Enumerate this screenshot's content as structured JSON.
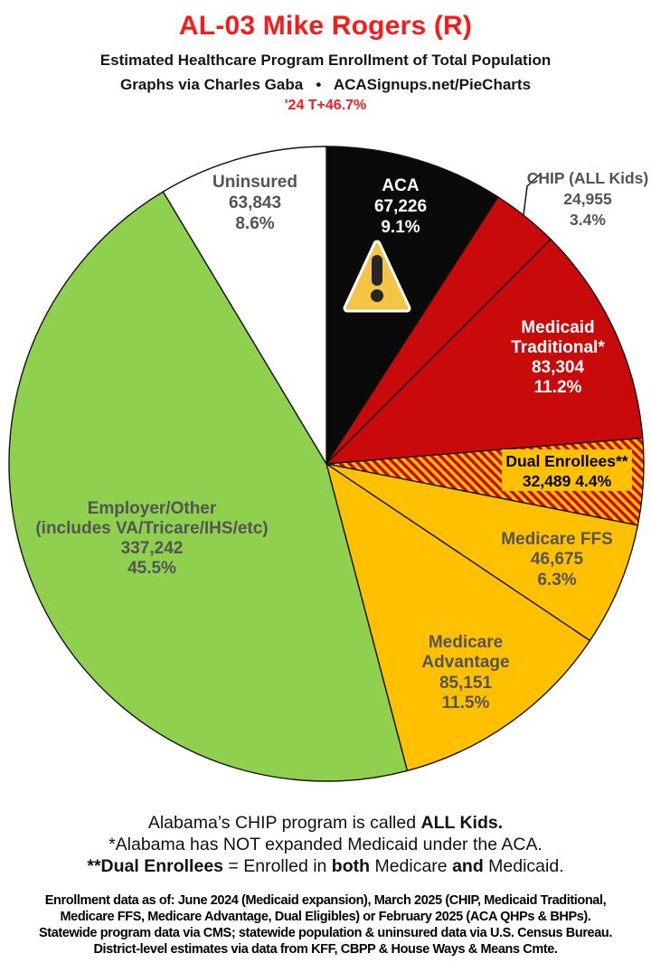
{
  "header": {
    "title": "AL-03 Mike Rogers (R)",
    "subtitle": "Estimated Healthcare Program Enrollment of Total Population",
    "credit": "Graphs via Charles Gaba   •   ACASignups.net/PieCharts",
    "trend": "'24 T+46.7%",
    "title_color": "#fa1a1a"
  },
  "chart_data": {
    "type": "pie",
    "title": "AL-03 Mike Rogers (R) — Estimated Healthcare Program Enrollment of Total Population",
    "start_angle": "12 o'clock, clockwise",
    "colors": {
      "black": "#0a0a0a",
      "red": "#c80a0a",
      "gold": "#ffc000",
      "green": "#8fd14f",
      "white": "#ffffff",
      "label_gray": "#545454"
    },
    "segments": [
      {
        "id": "aca",
        "label": "ACA",
        "value": 67226,
        "value_str": "67,226",
        "pct": 9.1,
        "pct_str": "9.1%",
        "color": "#0a0a0a",
        "text_color": "#ffffff",
        "display_lines": [
          "ACA",
          "67,226",
          "9.1%"
        ],
        "icon": "warning-triangle"
      },
      {
        "id": "chip",
        "label": "CHIP (ALL Kids)",
        "value": 24955,
        "value_str": "24,955",
        "pct": 3.4,
        "pct_str": "3.4%",
        "color": "#c80a0a",
        "text_color": "#545454",
        "display_lines": [
          "CHIP (ALL Kids)",
          "24,955",
          "3.4%"
        ],
        "label_placement": "outside-with-leader-line"
      },
      {
        "id": "medicaid",
        "label": "Medicaid Traditional*",
        "value": 83304,
        "value_str": "83,304",
        "pct": 11.2,
        "pct_str": "11.2%",
        "color": "#c80a0a",
        "text_color": "#ffffff",
        "display_lines": [
          "Medicaid",
          "Traditional*",
          "83,304",
          "11.2%"
        ]
      },
      {
        "id": "dual",
        "label": "Dual Enrollees**",
        "value": 32489,
        "value_str": "32,489",
        "pct": 4.4,
        "pct_str": "4.4%",
        "color": "hatch:red-on-gold",
        "text_color": "#000000",
        "display_lines": [
          "Dual Enrollees**",
          "32,489 4.4%"
        ],
        "label_background": "#ffc000"
      },
      {
        "id": "ffs",
        "label": "Medicare FFS",
        "value": 46675,
        "value_str": "46,675",
        "pct": 6.3,
        "pct_str": "6.3%",
        "color": "#ffc000",
        "text_color": "#545454",
        "display_lines": [
          "Medicare FFS",
          "46,675",
          "6.3%"
        ]
      },
      {
        "id": "madv",
        "label": "Medicare Advantage",
        "value": 85151,
        "value_str": "85,151",
        "pct": 11.5,
        "pct_str": "11.5%",
        "color": "#ffc000",
        "text_color": "#545454",
        "display_lines": [
          "Medicare",
          "Advantage",
          "85,151",
          "11.5%"
        ]
      },
      {
        "id": "employer",
        "label": "Employer/Other (includes VA/Tricare/IHS/etc)",
        "value": 337242,
        "value_str": "337,242",
        "pct": 45.5,
        "pct_str": "45.5%",
        "color": "#8fd14f",
        "text_color": "#545454",
        "display_lines": [
          "Employer/Other",
          "(includes VA/Tricare/IHS/etc)",
          "337,242",
          "45.5%"
        ]
      },
      {
        "id": "uninsured",
        "label": "Uninsured",
        "value": 63843,
        "value_str": "63,843",
        "pct": 8.6,
        "pct_str": "8.6%",
        "color": "#ffffff",
        "text_color": "#545454",
        "display_lines": [
          "Uninsured",
          "63,843",
          "8.6%"
        ]
      }
    ]
  },
  "notes": {
    "lines": [
      [
        {
          "t": "Alabama’s CHIP program is called ",
          "b": false
        },
        {
          "t": "ALL Kids.",
          "b": true
        }
      ],
      [
        {
          "t": "*Alabama has NOT expanded Medicaid under the ACA.",
          "b": false
        }
      ],
      [
        {
          "t": "**Dual Enrollees",
          "b": true
        },
        {
          "t": " = Enrolled in ",
          "b": false
        },
        {
          "t": "both",
          "b": true
        },
        {
          "t": " Medicare ",
          "b": false
        },
        {
          "t": "and",
          "b": true
        },
        {
          "t": " Medicaid.",
          "b": false
        }
      ]
    ]
  },
  "fine_print": {
    "lines": [
      "Enrollment data as of: June 2024 (Medicaid expansion), March 2025 (CHIP, Medicaid Traditional,",
      "Medicare FFS, Medicare Advantage, Dual Eligibles) or February 2025 (ACA QHPs & BHPs).",
      "Statewide program data via CMS; statewide population & uninsured data via U.S. Census Bureau.",
      "District-level estimates via data from KFF, CBPP & House Ways & Means Cmte."
    ]
  }
}
